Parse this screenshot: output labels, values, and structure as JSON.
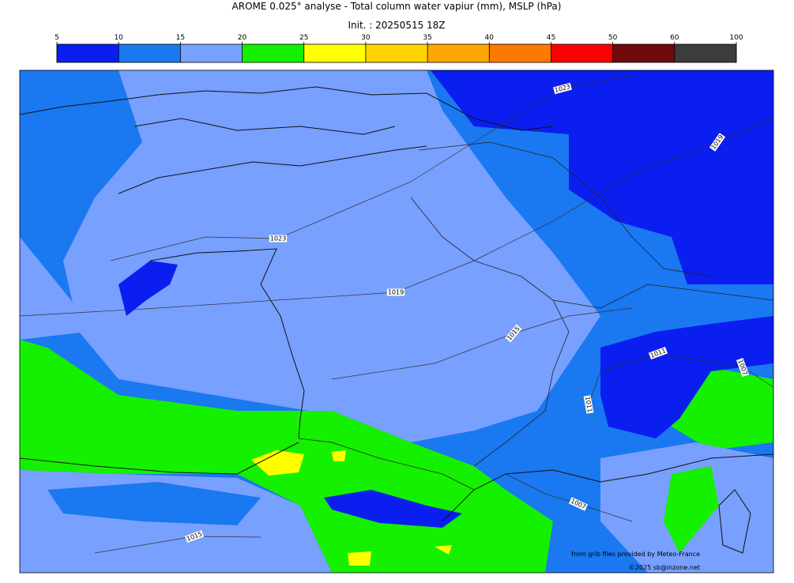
{
  "header": {
    "title": "AROME 0.025° analyse - Total column water vapiur (mm), MSLP (hPa)",
    "subtitle": "Init. : 20250515 18Z"
  },
  "colorbar": {
    "ticks": [
      5,
      10,
      15,
      20,
      25,
      30,
      35,
      40,
      45,
      50,
      60,
      100
    ],
    "colors": [
      "#0a1ef0",
      "#1a78f0",
      "#78a0ff",
      "#14f000",
      "#ffff00",
      "#ffd200",
      "#ffa500",
      "#ff7800",
      "#ff0000",
      "#6e0a0a",
      "#3c3c3c"
    ]
  },
  "isobar_labels": [
    1023,
    1019,
    1023,
    1019,
    1015,
    1011,
    1007,
    1011,
    1007,
    1015
  ],
  "credits": [
    "from grib files provided by Meteo-France",
    "©2025 sb@inzone.net"
  ]
}
